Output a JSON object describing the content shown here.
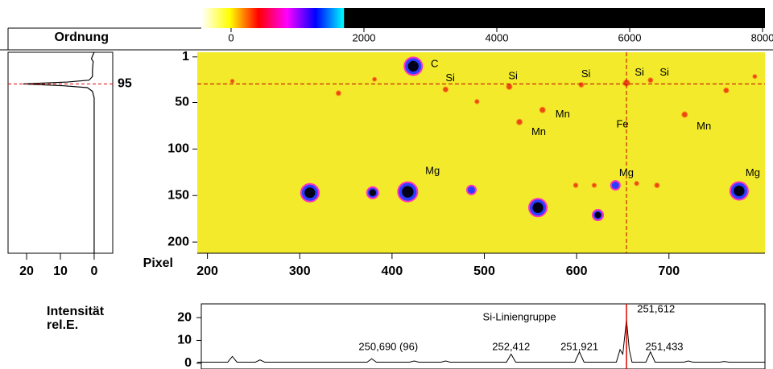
{
  "chart_data": [
    {
      "type": "colorbar",
      "xlim": [
        -448,
        8036
      ],
      "xticks": [
        0,
        2000,
        4000,
        6000,
        8000
      ],
      "gradient_range": [
        -448,
        1700
      ],
      "colors": [
        "#ffffff",
        "#ffff00",
        "#ff0000",
        "#ff00ff",
        "#0000ff",
        "#00ffff"
      ],
      "background": "#000000"
    },
    {
      "type": "profile",
      "title": "Ordnung",
      "annotation": "95",
      "marker_y": 30,
      "y": [
        -4,
        0,
        3,
        6,
        15,
        22,
        26,
        28,
        30,
        32,
        34,
        38,
        45,
        212
      ],
      "values": [
        0,
        0.5,
        0.8,
        0.3,
        0.5,
        0.5,
        1.5,
        8,
        21,
        9,
        2,
        0.5,
        0,
        0
      ],
      "xlim": [
        25.5,
        -5.5
      ],
      "xticks": [
        20,
        10,
        0
      ],
      "ylim": [
        -4,
        212
      ],
      "color": "#000000",
      "marker_color": "#e00000"
    },
    {
      "type": "image",
      "x_label": "Pixel",
      "xlim": [
        189,
        804
      ],
      "ylim": [
        -4,
        212
      ],
      "xticks": [
        200,
        300,
        400,
        500,
        600,
        700
      ],
      "yticks": [
        1,
        50,
        100,
        150,
        200
      ],
      "background": "#f2ea2a",
      "spots": {
        "x": [
          423,
          311,
          379,
          417,
          486,
          558,
          623,
          642,
          776,
          654,
          458,
          527,
          605,
          680,
          538,
          563,
          717,
          762,
          342,
          492,
          381,
          227,
          793,
          599,
          619,
          665,
          687
        ],
        "y": [
          11,
          147,
          147,
          146,
          144,
          163,
          171,
          139,
          145,
          29,
          36,
          33,
          31,
          26,
          71,
          58,
          63,
          37,
          40,
          49,
          25,
          27,
          22,
          139,
          139,
          137,
          139
        ],
        "intensity": [
          8000,
          8000,
          4000,
          9000,
          2500,
          8000,
          3500,
          2500,
          8000,
          1500,
          1000,
          1200,
          900,
          900,
          1200,
          1200,
          1200,
          1000,
          900,
          700,
          600,
          500,
          600,
          800,
          700,
          700,
          900
        ]
      },
      "labels": [
        {
          "text": "C",
          "x": 442,
          "y": 9
        },
        {
          "text": "Si",
          "x": 458,
          "y": 24
        },
        {
          "text": "Si",
          "x": 526,
          "y": 22
        },
        {
          "text": "Si",
          "x": 605,
          "y": 20
        },
        {
          "text": "Si",
          "x": 663,
          "y": 18
        },
        {
          "text": "Si",
          "x": 690,
          "y": 18
        },
        {
          "text": "Mn",
          "x": 577,
          "y": 63
        },
        {
          "text": "Mn",
          "x": 551,
          "y": 82
        },
        {
          "text": "Fe",
          "x": 643,
          "y": 74
        },
        {
          "text": "Mn",
          "x": 730,
          "y": 76
        },
        {
          "text": "Mg",
          "x": 436,
          "y": 124
        },
        {
          "text": "Mg",
          "x": 646,
          "y": 126
        },
        {
          "text": "Mg",
          "x": 783,
          "y": 126
        }
      ],
      "crosshair": {
        "x": 654,
        "y": 30
      },
      "crosshair_color": "#c00000"
    },
    {
      "type": "line",
      "y_label_lines": [
        "Intensität",
        "rel.E."
      ],
      "x": [
        189,
        222,
        227,
        232,
        252,
        257,
        262,
        373,
        378,
        383,
        419,
        424,
        429,
        453,
        458,
        463,
        524,
        529,
        534,
        598,
        603,
        608,
        643,
        647,
        650,
        654,
        657,
        660,
        675,
        680,
        685,
        716,
        721,
        726,
        755,
        760,
        765,
        804
      ],
      "values": [
        0.5,
        0.5,
        3,
        0.5,
        0.5,
        1.5,
        0.5,
        0.5,
        2,
        0.5,
        0.5,
        1,
        0.5,
        0.5,
        1,
        0.5,
        0.5,
        4,
        0.5,
        0.5,
        5,
        0.5,
        0.5,
        6,
        4,
        19,
        6,
        0.5,
        0.5,
        5,
        0.5,
        0.5,
        1,
        0.5,
        0.5,
        0.8,
        0.5,
        0.5
      ],
      "xlim": [
        189,
        804
      ],
      "ylim": [
        -2.5,
        26
      ],
      "yticks": [
        0,
        10,
        20
      ],
      "marker_x": 654,
      "labels": [
        {
          "text": "Si-Liniengruppe",
          "x": 538,
          "y": 20
        },
        {
          "text": "250,690 (96)",
          "x": 396,
          "y": 7
        },
        {
          "text": "252,412",
          "x": 529,
          "y": 7
        },
        {
          "text": "251,921",
          "x": 603,
          "y": 7
        },
        {
          "text": "251,612",
          "x": 686,
          "y": 23.5
        },
        {
          "text": "251,433",
          "x": 695,
          "y": 7
        }
      ],
      "color": "#000000",
      "marker_color": "#e00000"
    }
  ]
}
